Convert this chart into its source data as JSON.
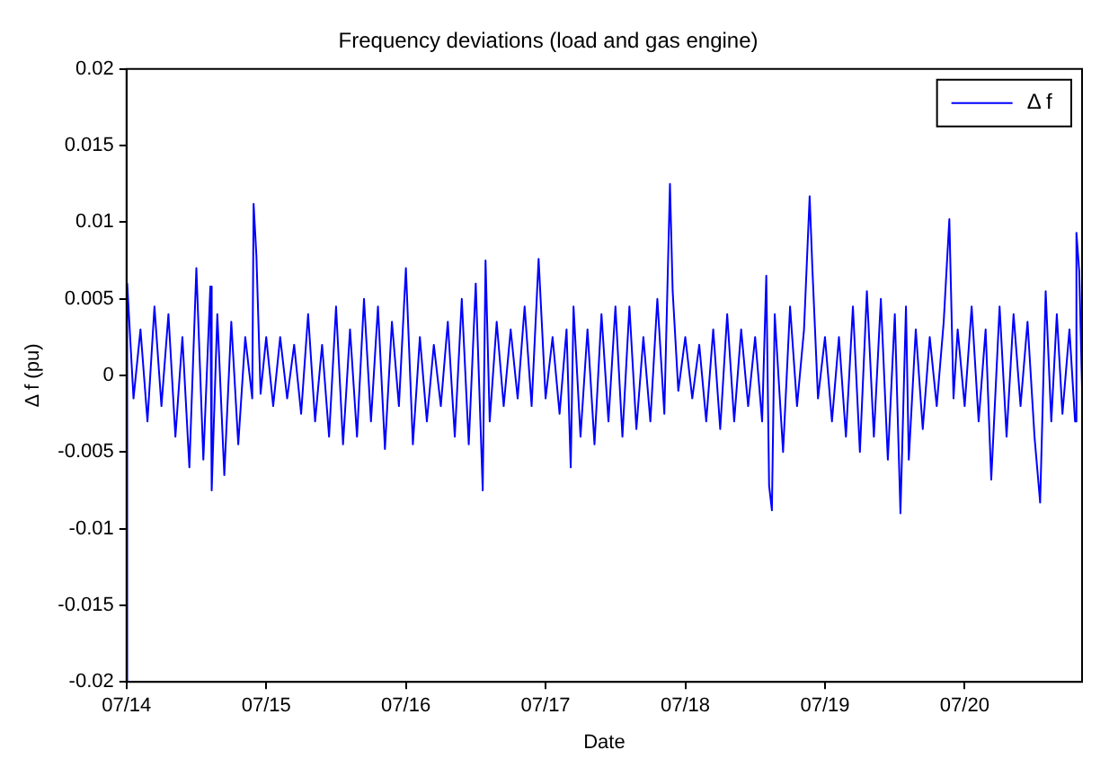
{
  "chart_data": {
    "type": "line",
    "title": "Frequency deviations (load and gas engine)",
    "xlabel": "Date",
    "ylabel": "Δ f (pu)",
    "xlim": [
      "--07-14T00:00",
      "--07-20T20:10"
    ],
    "xticks": [
      {
        "value": "--07-14",
        "label": "07/14"
      },
      {
        "value": "--07-15",
        "label": "07/15"
      },
      {
        "value": "--07-16",
        "label": "07/16"
      },
      {
        "value": "--07-17",
        "label": "07/17"
      },
      {
        "value": "--07-18",
        "label": "07/18"
      },
      {
        "value": "--07-19",
        "label": "07/19"
      },
      {
        "value": "--07-20",
        "label": "07/20"
      }
    ],
    "ylim": [
      -0.02,
      0.02
    ],
    "yticks": [
      -0.02,
      -0.015,
      -0.01,
      -0.005,
      0,
      0.005,
      0.01,
      0.015,
      0.02
    ],
    "grid": false,
    "legend": "top right",
    "marker": "none",
    "line_style": "solid",
    "series": [
      {
        "name": "Δ f",
        "color": "#0000ff",
        "x": [
          "--07-14T00:00",
          "--07-14T00:07",
          "--07-14T01:12",
          "--07-14T02:24",
          "--07-14T03:36",
          "--07-14T04:48",
          "--07-14T06:00",
          "--07-14T07:12",
          "--07-14T08:24",
          "--07-14T09:36",
          "--07-14T10:48",
          "--07-14T12:00",
          "--07-14T13:12",
          "--07-14T14:24",
          "--07-14T14:38",
          "--07-14T15:36",
          "--07-14T16:48",
          "--07-14T18:00",
          "--07-14T19:12",
          "--07-14T20:24",
          "--07-14T21:36",
          "--07-14T21:50",
          "--07-14T22:19",
          "--07-14T23:02",
          "--07-15T00:00",
          "--07-15T01:12",
          "--07-15T02:24",
          "--07-15T03:36",
          "--07-15T04:48",
          "--07-15T06:00",
          "--07-15T07:12",
          "--07-15T08:24",
          "--07-15T09:36",
          "--07-15T10:48",
          "--07-15T12:00",
          "--07-15T13:12",
          "--07-15T14:24",
          "--07-15T15:36",
          "--07-15T16:48",
          "--07-15T18:00",
          "--07-15T19:12",
          "--07-15T20:24",
          "--07-15T21:36",
          "--07-15T22:48",
          "--07-16T00:00",
          "--07-16T01:12",
          "--07-16T02:24",
          "--07-16T03:36",
          "--07-16T04:48",
          "--07-16T06:00",
          "--07-16T07:12",
          "--07-16T08:24",
          "--07-16T09:36",
          "--07-16T10:48",
          "--07-16T12:00",
          "--07-16T13:12",
          "--07-16T13:41",
          "--07-16T14:24",
          "--07-16T15:36",
          "--07-16T16:48",
          "--07-16T18:00",
          "--07-16T19:12",
          "--07-16T20:24",
          "--07-16T21:36",
          "--07-16T22:48",
          "--07-17T00:00",
          "--07-17T01:12",
          "--07-17T02:24",
          "--07-17T03:36",
          "--07-17T04:19",
          "--07-17T04:48",
          "--07-17T06:00",
          "--07-17T07:12",
          "--07-17T08:24",
          "--07-17T09:36",
          "--07-17T10:48",
          "--07-17T12:00",
          "--07-17T13:12",
          "--07-17T14:24",
          "--07-17T15:36",
          "--07-17T16:48",
          "--07-17T18:00",
          "--07-17T19:12",
          "--07-17T20:24",
          "--07-17T21:22",
          "--07-17T21:50",
          "--07-17T22:48",
          "--07-18T00:00",
          "--07-18T01:12",
          "--07-18T02:24",
          "--07-18T03:36",
          "--07-18T04:48",
          "--07-18T06:00",
          "--07-18T07:12",
          "--07-18T08:24",
          "--07-18T09:36",
          "--07-18T10:48",
          "--07-18T12:00",
          "--07-18T13:12",
          "--07-18T13:55",
          "--07-18T14:24",
          "--07-18T14:53",
          "--07-18T15:22",
          "--07-18T16:48",
          "--07-18T18:00",
          "--07-18T19:12",
          "--07-18T20:24",
          "--07-18T21:22",
          "--07-18T21:50",
          "--07-18T22:48",
          "--07-19T00:00",
          "--07-19T01:12",
          "--07-19T02:24",
          "--07-19T03:36",
          "--07-19T04:48",
          "--07-19T06:00",
          "--07-19T07:12",
          "--07-19T08:24",
          "--07-19T09:36",
          "--07-19T10:48",
          "--07-19T12:00",
          "--07-19T12:58",
          "--07-19T13:55",
          "--07-19T14:24",
          "--07-19T15:36",
          "--07-19T16:48",
          "--07-19T18:00",
          "--07-19T19:12",
          "--07-19T20:24",
          "--07-19T21:22",
          "--07-19T22:05",
          "--07-19T22:48",
          "--07-20T00:00",
          "--07-20T01:12",
          "--07-20T02:24",
          "--07-20T03:36",
          "--07-20T04:34",
          "--07-20T06:00",
          "--07-20T07:12",
          "--07-20T08:24",
          "--07-20T09:36",
          "--07-20T10:48",
          "--07-20T12:00",
          "--07-20T12:58",
          "--07-20T13:55",
          "--07-20T14:53",
          "--07-20T15:50",
          "--07-20T16:48",
          "--07-20T18:00",
          "--07-20T18:58",
          "--07-20T19:12",
          "--07-20T19:41",
          "--07-20T20:10"
        ],
        "values": [
          -0.02,
          0.006,
          -0.0015,
          0.003,
          -0.003,
          0.0045,
          -0.002,
          0.004,
          -0.004,
          0.0025,
          -0.006,
          0.007,
          -0.0055,
          0.0058,
          -0.0075,
          0.004,
          -0.0065,
          0.0035,
          -0.0045,
          0.0025,
          -0.0015,
          0.0112,
          0.0078,
          -0.0012,
          0.0025,
          -0.002,
          0.0025,
          -0.0015,
          0.002,
          -0.0025,
          0.004,
          -0.003,
          0.002,
          -0.004,
          0.0045,
          -0.0045,
          0.003,
          -0.004,
          0.005,
          -0.003,
          0.0045,
          -0.0048,
          0.0035,
          -0.002,
          0.007,
          -0.0045,
          0.0025,
          -0.003,
          0.002,
          -0.002,
          0.0035,
          -0.004,
          0.005,
          -0.0045,
          0.006,
          -0.0075,
          0.0075,
          -0.003,
          0.0035,
          -0.002,
          0.003,
          -0.0015,
          0.0045,
          -0.002,
          0.0076,
          -0.0015,
          0.0025,
          -0.0025,
          0.003,
          -0.006,
          0.0045,
          -0.004,
          0.003,
          -0.0045,
          0.004,
          -0.003,
          0.0045,
          -0.004,
          0.0045,
          -0.0035,
          0.0025,
          -0.003,
          0.005,
          -0.0025,
          0.0125,
          0.0055,
          -0.001,
          0.0025,
          -0.0015,
          0.002,
          -0.003,
          0.003,
          -0.0035,
          0.004,
          -0.003,
          0.003,
          -0.002,
          0.0025,
          -0.003,
          0.0065,
          -0.0072,
          -0.0088,
          0.004,
          -0.005,
          0.0045,
          -0.002,
          0.003,
          0.0117,
          0.007,
          -0.0015,
          0.0025,
          -0.003,
          0.0025,
          -0.004,
          0.0045,
          -0.005,
          0.0055,
          -0.004,
          0.005,
          -0.0055,
          0.004,
          -0.009,
          0.0045,
          -0.0055,
          0.003,
          -0.0035,
          0.0025,
          -0.002,
          0.0035,
          0.0102,
          -0.0015,
          0.003,
          -0.002,
          0.0045,
          -0.003,
          0.003,
          -0.0068,
          0.0045,
          -0.004,
          0.004,
          -0.002,
          0.0035,
          -0.004,
          -0.0083,
          0.0055,
          -0.003,
          0.004,
          -0.0025,
          0.003,
          -0.003,
          0.0093,
          0.0068,
          -0.0008
        ]
      }
    ]
  }
}
